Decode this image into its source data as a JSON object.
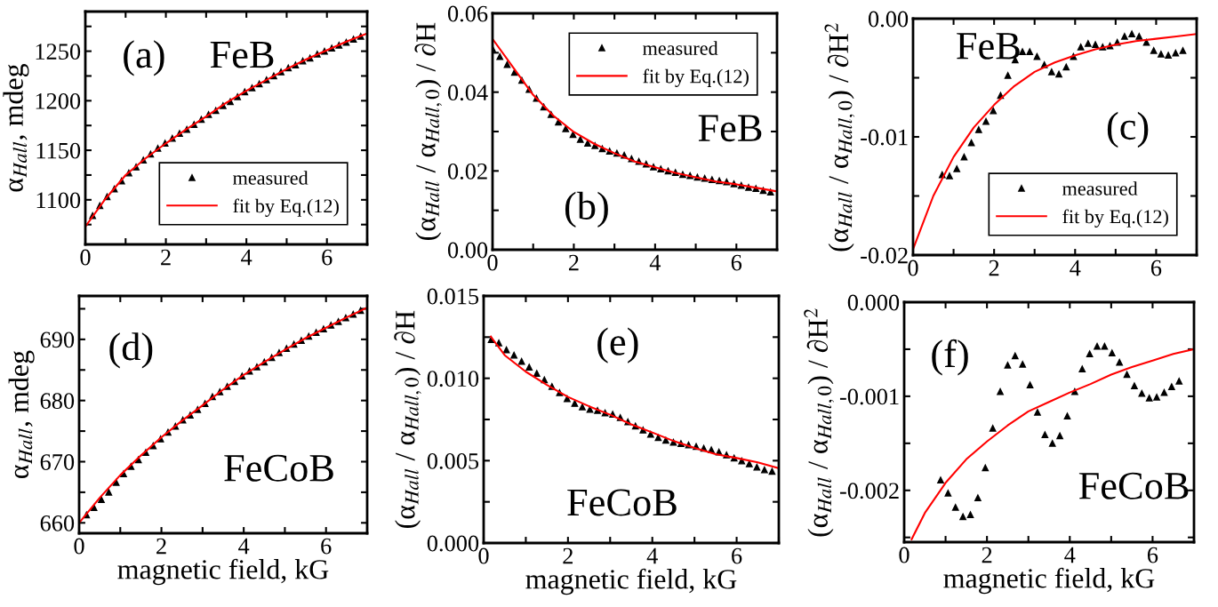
{
  "chart_data": [
    {
      "type": "scatter",
      "ylabel": "α$_{Hall}$, mdeg",
      "annotations": [
        "(a)",
        "FeB"
      ],
      "legend": "bottom right",
      "xlim": [
        0,
        7
      ],
      "ylim": [
        1055,
        1290
      ],
      "xticks": [
        0,
        {
          "value": 1,
          "label": null
        },
        2,
        {
          "value": 3,
          "label": null
        },
        4,
        {
          "value": 5,
          "label": null
        },
        6,
        {
          "value": 7,
          "label": null
        }
      ],
      "yticks": [
        {
          "value": 1075,
          "label": null
        },
        1100,
        {
          "value": 1125,
          "label": null
        },
        1150,
        {
          "value": 1175,
          "label": null
        },
        1200,
        {
          "value": 1225,
          "label": null
        },
        1250,
        {
          "value": 1275,
          "label": null
        }
      ],
      "series": [
        {
          "name": "measured",
          "marker": "triangle",
          "color": "#000000",
          "x": [
            0.18,
            0.36,
            0.54,
            0.72,
            0.9,
            1.08,
            1.26,
            1.44,
            1.62,
            1.8,
            1.98,
            2.16,
            2.34,
            2.52,
            2.7,
            2.88,
            3.06,
            3.24,
            3.42,
            3.6,
            3.78,
            3.96,
            4.14,
            4.32,
            4.5,
            4.68,
            4.86,
            5.04,
            5.22,
            5.4,
            5.58,
            5.76,
            5.94,
            6.12,
            6.3,
            6.48,
            6.66,
            6.84
          ],
          "values": [
            1084,
            1094,
            1103,
            1111,
            1119,
            1127,
            1133,
            1140,
            1146,
            1152,
            1157,
            1162,
            1167,
            1171,
            1176,
            1181,
            1186,
            1190,
            1195,
            1199,
            1204,
            1209,
            1213,
            1217,
            1221,
            1225,
            1229,
            1233,
            1236,
            1240,
            1243,
            1247,
            1250,
            1253,
            1256,
            1259,
            1262,
            1265
          ]
        },
        {
          "name": "fit by Eq.(12)",
          "type": "line",
          "color": "#ff0000",
          "x": [
            0,
            0.5,
            1,
            1.5,
            2,
            2.5,
            3,
            3.5,
            4,
            4.5,
            5,
            5.5,
            6,
            6.5,
            7
          ],
          "values": [
            1073,
            1101,
            1125,
            1142,
            1157,
            1171,
            1184,
            1198,
            1210,
            1221,
            1232,
            1242,
            1251,
            1260,
            1268
          ]
        }
      ]
    },
    {
      "type": "scatter",
      "ylabel": "(α$_{Hall}$ / α$_{Hall,0}$) / ∂H",
      "annotations": [
        "FeB",
        "(b)"
      ],
      "legend": "top right",
      "xlim": [
        0,
        7
      ],
      "ylim": [
        0,
        0.06
      ],
      "xticks": [
        0,
        {
          "value": 1,
          "label": null
        },
        2,
        {
          "value": 3,
          "label": null
        },
        4,
        {
          "value": 5,
          "label": null
        },
        6,
        {
          "value": 7,
          "label": null
        }
      ],
      "yticks": [
        {
          "value": 0,
          "label": "0.00"
        },
        {
          "value": 0.01,
          "label": null
        },
        {
          "value": 0.02,
          "label": "0.02"
        },
        {
          "value": 0.03,
          "label": null
        },
        {
          "value": 0.04,
          "label": "0.04"
        },
        {
          "value": 0.05,
          "label": null
        },
        {
          "value": 0.06,
          "label": "0.06"
        }
      ],
      "series": [
        {
          "name": "measured",
          "marker": "triangle",
          "color": "#000000",
          "x": [
            0,
            0.18,
            0.36,
            0.54,
            0.72,
            0.9,
            1.08,
            1.26,
            1.44,
            1.62,
            1.8,
            1.98,
            2.16,
            2.34,
            2.52,
            2.7,
            2.88,
            3.06,
            3.24,
            3.42,
            3.6,
            3.78,
            3.96,
            4.14,
            4.32,
            4.5,
            4.68,
            4.86,
            5.04,
            5.22,
            5.4,
            5.58,
            5.76,
            5.94,
            6.12,
            6.3,
            6.48,
            6.66,
            6.84
          ],
          "values": [
            0.051,
            0.049,
            0.047,
            0.045,
            0.043,
            0.0407,
            0.0384,
            0.0362,
            0.0343,
            0.0324,
            0.0307,
            0.0292,
            0.028,
            0.027,
            0.0264,
            0.0256,
            0.025,
            0.0245,
            0.024,
            0.0231,
            0.0224,
            0.0217,
            0.021,
            0.0205,
            0.02,
            0.0196,
            0.0191,
            0.0188,
            0.0184,
            0.0181,
            0.0178,
            0.0175,
            0.0172,
            0.0167,
            0.0163,
            0.0158,
            0.0155,
            0.015,
            0.0146
          ]
        },
        {
          "name": "fit by Eq.(12)",
          "type": "line",
          "color": "#ff0000",
          "x": [
            0,
            0.5,
            1,
            1.5,
            2,
            2.5,
            3,
            3.5,
            4,
            4.5,
            5,
            5.5,
            6,
            6.5,
            7
          ],
          "values": [
            0.0535,
            0.0464,
            0.0393,
            0.034,
            0.0299,
            0.0269,
            0.0245,
            0.0224,
            0.0209,
            0.0195,
            0.0184,
            0.0173,
            0.0166,
            0.0157,
            0.0148
          ]
        }
      ]
    },
    {
      "type": "scatter",
      "ylabel": "(α$_{Hall}$ / α$_{Hall,0}$) / ∂H$^{2}$",
      "annotations": [
        "FeB",
        "(c)"
      ],
      "legend": "bottom right",
      "xlim": [
        0,
        7
      ],
      "ylim": [
        -0.02,
        0
      ],
      "xticks": [
        0,
        {
          "value": 1,
          "label": null
        },
        2,
        {
          "value": 3,
          "label": null
        },
        4,
        {
          "value": 5,
          "label": null
        },
        6,
        {
          "value": 7,
          "label": null
        }
      ],
      "yticks": [
        {
          "value": -0.02,
          "label": "-0.02"
        },
        {
          "value": -0.015,
          "label": null
        },
        {
          "value": -0.01,
          "label": "-0.01"
        },
        {
          "value": -0.005,
          "label": null
        },
        {
          "value": 0,
          "label": "0.00"
        }
      ],
      "series": [
        {
          "name": "measured",
          "marker": "triangle",
          "color": "#000000",
          "x": [
            0.72,
            0.9,
            1.08,
            1.26,
            1.44,
            1.62,
            1.8,
            1.98,
            2.16,
            2.34,
            2.52,
            2.7,
            2.88,
            3.06,
            3.24,
            3.42,
            3.6,
            3.78,
            3.96,
            4.14,
            4.32,
            4.5,
            4.68,
            4.86,
            5.04,
            5.22,
            5.4,
            5.58,
            5.76,
            5.94,
            6.12,
            6.3,
            6.48,
            6.66
          ],
          "values": [
            -0.0132,
            -0.0133,
            -0.0127,
            -0.0117,
            -0.0105,
            -0.0094,
            -0.0087,
            -0.0078,
            -0.0065,
            -0.0048,
            -0.0035,
            -0.0028,
            -0.0028,
            -0.0032,
            -0.0039,
            -0.0045,
            -0.0047,
            -0.0041,
            -0.0032,
            -0.0024,
            -0.0021,
            -0.0022,
            -0.0024,
            -0.0023,
            -0.002,
            -0.0015,
            -0.0013,
            -0.0015,
            -0.002,
            -0.0027,
            -0.003,
            -0.0031,
            -0.0029,
            -0.0027
          ]
        },
        {
          "name": "fit by Eq.(12)",
          "type": "line",
          "color": "#ff0000",
          "x": [
            0,
            0.5,
            1,
            1.5,
            2,
            2.5,
            3,
            3.5,
            4,
            4.5,
            5,
            5.5,
            6,
            6.5,
            7
          ],
          "values": [
            -0.0195,
            -0.015,
            -0.0117,
            -0.0092,
            -0.0073,
            -0.0057,
            -0.0045,
            -0.0037,
            -0.0031,
            -0.0026,
            -0.0022,
            -0.0019,
            -0.0017,
            -0.0015,
            -0.0013
          ]
        }
      ]
    },
    {
      "type": "scatter",
      "ylabel": "α$_{Hall}$, mdeg",
      "xlabel": "magnetic field, kG",
      "annotations": [
        "(d)",
        "FeCoB"
      ],
      "xlim": [
        0,
        7
      ],
      "ylim": [
        658.3,
        697.1
      ],
      "xticks": [
        0,
        {
          "value": 1,
          "label": null
        },
        2,
        {
          "value": 3,
          "label": null
        },
        4,
        {
          "value": 5,
          "label": null
        },
        6,
        {
          "value": 7,
          "label": null
        }
      ],
      "yticks": [
        660,
        {
          "value": 665,
          "label": null
        },
        670,
        {
          "value": 675,
          "label": null
        },
        680,
        {
          "value": 685,
          "label": null
        },
        690,
        {
          "value": 695,
          "label": null
        }
      ],
      "series": [
        {
          "type": "scatter",
          "marker": "triangle",
          "color": "#000000",
          "x": [
            0.18,
            0.36,
            0.54,
            0.72,
            0.9,
            1.08,
            1.26,
            1.44,
            1.62,
            1.8,
            1.98,
            2.16,
            2.34,
            2.52,
            2.7,
            2.88,
            3.06,
            3.24,
            3.42,
            3.6,
            3.78,
            3.96,
            4.14,
            4.32,
            4.5,
            4.68,
            4.86,
            5.04,
            5.22,
            5.4,
            5.58,
            5.76,
            5.94,
            6.12,
            6.3,
            6.48,
            6.66,
            6.84
          ],
          "values": [
            661.3,
            662.5,
            663.8,
            665,
            666.6,
            668,
            669.2,
            670.3,
            671.5,
            672.6,
            673.7,
            674.8,
            675.8,
            676.8,
            677.6,
            678.5,
            679.5,
            680.6,
            681.4,
            682.3,
            683.1,
            684,
            684.8,
            685.5,
            686.3,
            687,
            687.8,
            688.5,
            689.2,
            689.8,
            690.5,
            691.1,
            691.7,
            692.3,
            692.9,
            693.5,
            694.1,
            694.7
          ]
        },
        {
          "type": "line",
          "color": "#ff0000",
          "x": [
            0,
            0.5,
            1,
            1.5,
            2,
            2.5,
            3,
            3.5,
            4,
            4.5,
            5,
            5.5,
            6,
            6.5,
            7
          ],
          "values": [
            660,
            664.1,
            667.8,
            671,
            674,
            676.7,
            679.2,
            681.8,
            684.2,
            686.3,
            688.3,
            690.2,
            691.9,
            693.6,
            695.2
          ]
        }
      ]
    },
    {
      "type": "scatter",
      "ylabel": "(α$_{Hall}$ / α$_{Hall,0}$) / ∂H",
      "xlabel": "magnetic field, kG",
      "annotations": [
        "(e)",
        "FeCoB"
      ],
      "xlim": [
        0,
        7
      ],
      "ylim": [
        0,
        0.015
      ],
      "xticks": [
        0,
        {
          "value": 1,
          "label": null
        },
        2,
        {
          "value": 3,
          "label": null
        },
        4,
        {
          "value": 5,
          "label": null
        },
        6,
        {
          "value": 7,
          "label": null
        }
      ],
      "yticks": [
        {
          "value": 0,
          "label": "0.000"
        },
        {
          "value": 0.0025,
          "label": null
        },
        {
          "value": 0.005,
          "label": "0.005"
        },
        {
          "value": 0.0075,
          "label": null
        },
        {
          "value": 0.01,
          "label": "0.010"
        },
        {
          "value": 0.0125,
          "label": null
        },
        {
          "value": 0.015,
          "label": "0.015"
        }
      ],
      "series": [
        {
          "type": "scatter",
          "marker": "triangle",
          "color": "#000000",
          "x": [
            0.18,
            0.36,
            0.54,
            0.72,
            0.9,
            1.08,
            1.26,
            1.44,
            1.62,
            1.8,
            1.98,
            2.16,
            2.34,
            2.52,
            2.7,
            2.88,
            3.06,
            3.24,
            3.42,
            3.6,
            3.78,
            3.96,
            4.14,
            4.32,
            4.5,
            4.68,
            4.86,
            5.04,
            5.22,
            5.4,
            5.58,
            5.76,
            5.94,
            6.12,
            6.3,
            6.48,
            6.66,
            6.84
          ],
          "values": [
            0.01235,
            0.01215,
            0.01172,
            0.0114,
            0.01103,
            0.01068,
            0.0103,
            0.0099,
            0.0095,
            0.00912,
            0.00876,
            0.00847,
            0.00826,
            0.00811,
            0.00804,
            0.0079,
            0.00782,
            0.00761,
            0.00736,
            0.0071,
            0.00685,
            0.0066,
            0.0064,
            0.00624,
            0.00611,
            0.00604,
            0.00595,
            0.00586,
            0.00575,
            0.00566,
            0.00552,
            0.00534,
            0.00516,
            0.00498,
            0.0048,
            0.0046,
            0.00444,
            0.00435
          ]
        },
        {
          "type": "line",
          "color": "#ff0000",
          "x": [
            0.17,
            0.5,
            1,
            1.5,
            2,
            2.5,
            3,
            3.5,
            4,
            4.5,
            5,
            5.5,
            6,
            6.5,
            7
          ],
          "values": [
            0.01253,
            0.0114,
            0.0104,
            0.0096,
            0.00887,
            0.0083,
            0.00779,
            0.0072,
            0.00671,
            0.0062,
            0.00577,
            0.0054,
            0.00516,
            0.0049,
            0.00454
          ]
        }
      ]
    },
    {
      "type": "scatter",
      "ylabel": "(α$_{Hall}$ / α$_{Hall,0}$) / ∂H$^{2}$",
      "xlabel": "magnetic field, kG",
      "annotations": [
        "(f)",
        "FeCoB"
      ],
      "xlim": [
        0,
        7
      ],
      "ylim": [
        -0.00255,
        0
      ],
      "xticks": [
        0,
        {
          "value": 1,
          "label": null
        },
        2,
        {
          "value": 3,
          "label": null
        },
        4,
        {
          "value": 5,
          "label": null
        },
        6,
        {
          "value": 7,
          "label": null
        }
      ],
      "yticks": [
        {
          "value": -0.0025,
          "label": null
        },
        {
          "value": -0.002,
          "label": "-0.002"
        },
        {
          "value": -0.0015,
          "label": null
        },
        {
          "value": -0.001,
          "label": "-0.001"
        },
        {
          "value": -0.0005,
          "label": null
        },
        {
          "value": 0,
          "label": "0.000"
        }
      ],
      "series": [
        {
          "type": "scatter",
          "marker": "triangle",
          "color": "#000000",
          "x": [
            0.88,
            1.06,
            1.24,
            1.42,
            1.6,
            1.78,
            1.96,
            2.14,
            2.32,
            2.5,
            2.68,
            2.86,
            3.04,
            3.22,
            3.4,
            3.58,
            3.76,
            3.94,
            4.12,
            4.3,
            4.48,
            4.66,
            4.84,
            5.02,
            5.2,
            5.38,
            5.56,
            5.74,
            5.92,
            6.1,
            6.28,
            6.46,
            6.64
          ],
          "values": [
            -0.00189,
            -0.00203,
            -0.00218,
            -0.00228,
            -0.00226,
            -0.00208,
            -0.00176,
            -0.00134,
            -0.00095,
            -0.00067,
            -0.00057,
            -0.00066,
            -0.00088,
            -0.00117,
            -0.00141,
            -0.0015,
            -0.00142,
            -0.00121,
            -0.00095,
            -0.00071,
            -0.00055,
            -0.00047,
            -0.00047,
            -0.00054,
            -0.00064,
            -0.00077,
            -0.00089,
            -0.00097,
            -0.00102,
            -0.00101,
            -0.00096,
            -0.0009,
            -0.00084
          ]
        },
        {
          "type": "line",
          "color": "#ff0000",
          "x": [
            0.18,
            0.5,
            1,
            1.5,
            2,
            2.5,
            3,
            3.5,
            4,
            4.5,
            5,
            5.5,
            6,
            6.5,
            7
          ],
          "values": [
            -0.00252,
            -0.00224,
            -0.00192,
            -0.00167,
            -0.00148,
            -0.00131,
            -0.00116,
            -0.00106,
            -0.00096,
            -0.00087,
            -0.00077,
            -0.00069,
            -0.00062,
            -0.00055,
            -0.0005
          ]
        }
      ]
    }
  ]
}
